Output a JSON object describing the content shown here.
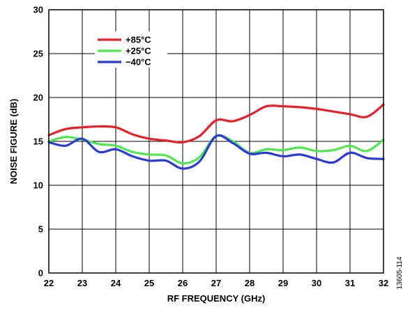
{
  "figure_id": "13605-114",
  "chart_data": {
    "type": "line",
    "xlabel": "RF FREQUENCY (GHz)",
    "ylabel": "NOISE FIGURE (dB)",
    "xlim": [
      22,
      32
    ],
    "ylim": [
      0,
      30
    ],
    "xticks": [
      22,
      23,
      24,
      25,
      26,
      27,
      28,
      29,
      30,
      31,
      32
    ],
    "yticks": [
      0,
      5,
      10,
      15,
      20,
      25,
      30
    ],
    "grid": true,
    "legend_position": "top-left",
    "series": [
      {
        "name": "+85°C",
        "color": "#e8202a",
        "x": [
          22,
          22.5,
          23,
          23.5,
          24,
          24.5,
          25,
          25.5,
          26,
          26.5,
          27,
          27.5,
          28,
          28.5,
          29,
          29.5,
          30,
          30.5,
          31,
          31.5,
          32
        ],
        "y": [
          15.7,
          16.4,
          16.6,
          16.7,
          16.6,
          15.8,
          15.3,
          15.1,
          14.9,
          15.6,
          17.4,
          17.3,
          18.0,
          19.0,
          19.0,
          18.9,
          18.7,
          18.4,
          18.1,
          17.8,
          19.2
        ]
      },
      {
        "name": "+25°C",
        "color": "#4de84d",
        "x": [
          22,
          22.5,
          23,
          23.5,
          24,
          24.5,
          25,
          25.5,
          26,
          26.5,
          27,
          27.5,
          28,
          28.5,
          29,
          29.5,
          30,
          30.5,
          31,
          31.5,
          32
        ],
        "y": [
          15.0,
          15.5,
          15.2,
          14.7,
          14.5,
          13.8,
          13.5,
          13.4,
          12.5,
          13.2,
          15.6,
          15.0,
          13.7,
          14.1,
          14.0,
          14.3,
          13.9,
          14.0,
          14.5,
          13.9,
          15.2
        ]
      },
      {
        "name": "−40°C",
        "color": "#2a3ad8",
        "x": [
          22,
          22.5,
          23,
          23.5,
          24,
          24.5,
          25,
          25.5,
          26,
          26.5,
          27,
          27.5,
          28,
          28.5,
          29,
          29.5,
          30,
          30.5,
          31,
          31.5,
          32
        ],
        "y": [
          14.9,
          14.5,
          15.3,
          13.8,
          14.1,
          13.3,
          12.8,
          12.8,
          11.9,
          12.7,
          15.6,
          14.8,
          13.6,
          13.7,
          13.3,
          13.5,
          13.0,
          12.6,
          13.7,
          13.1,
          13.0
        ]
      }
    ]
  }
}
